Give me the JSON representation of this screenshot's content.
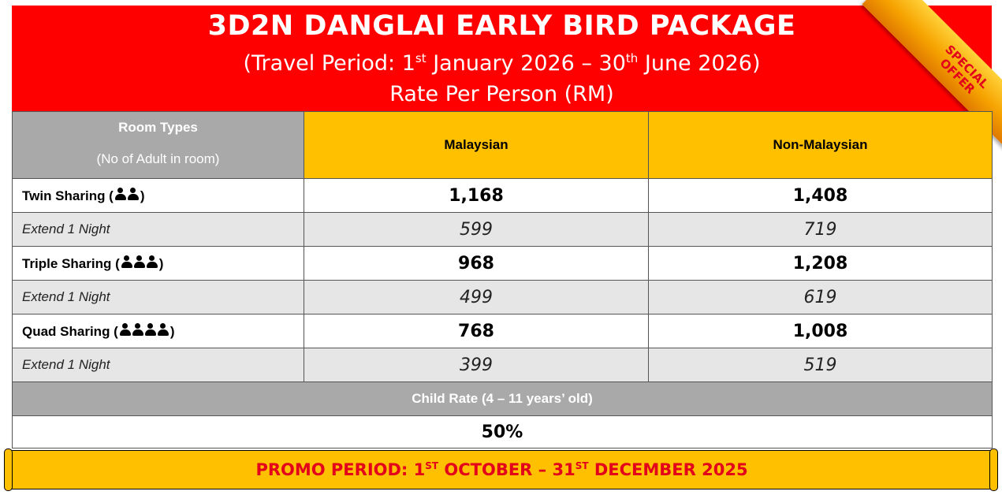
{
  "header": {
    "title": "3D2N DANGLAI EARLY BIRD PACKAGE",
    "travel_prefix": "(Travel Period: 1",
    "travel_sup1": "st",
    "travel_mid": " January 2026 – 30",
    "travel_sup2": "th",
    "travel_suffix": " June 2026)",
    "rate_label": "Rate Per Person (RM)",
    "ribbon_line1": "SPECIAL",
    "ribbon_line2": "OFFER"
  },
  "table": {
    "room_types_label": "Room Types",
    "adult_note": "(No of Adult in room)",
    "col_malaysian": "Malaysian",
    "col_non_malaysian": "Non-Malaysian",
    "rows": [
      {
        "label": "Twin Sharing (",
        "label_end": ")",
        "people": 2,
        "malaysian": "1,168",
        "non_malaysian": "1,408",
        "ext_label": "Extend 1 Night",
        "ext_malaysian": "599",
        "ext_non_malaysian": "719"
      },
      {
        "label": "Triple Sharing (",
        "label_end": ")",
        "people": 3,
        "malaysian": "968",
        "non_malaysian": "1,208",
        "ext_label": "Extend 1 Night",
        "ext_malaysian": "499",
        "ext_non_malaysian": "619"
      },
      {
        "label": "Quad Sharing (",
        "label_end": ")",
        "people": 4,
        "malaysian": "768",
        "non_malaysian": "1,008",
        "ext_label": "Extend 1 Night",
        "ext_malaysian": "399",
        "ext_non_malaysian": "519"
      }
    ],
    "child_rate_label": "Child Rate (4 – 11 years’ old)",
    "child_rate_value": "50%"
  },
  "promo": {
    "prefix": "PROMO PERIOD: 1",
    "sup1": "ST",
    "mid": " OCTOBER – 31",
    "sup2": "ST",
    "suffix": " DECEMBER 2025"
  },
  "colors": {
    "header_red": "#ff0000",
    "column_gold": "#ffc000",
    "header_grey": "#a9a9a9",
    "promo_red": "#e3001b"
  },
  "icons": {
    "people": "person-group-icon",
    "ribbon": "special-offer-ribbon"
  }
}
